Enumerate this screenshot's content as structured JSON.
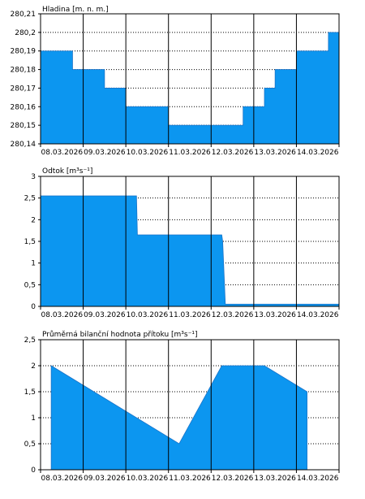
{
  "chart_data": [
    {
      "type": "area",
      "title": "Hladina [m. n. m.]",
      "x": [
        "2026-03-08T00:00",
        "2026-03-08T18:00",
        "2026-03-08T18:01",
        "2026-03-09T12:00",
        "2026-03-09T12:01",
        "2026-03-10T00:00",
        "2026-03-10T00:01",
        "2026-03-11T00:00",
        "2026-03-11T00:01",
        "2026-03-12T18:00",
        "2026-03-12T18:01",
        "2026-03-13T06:00",
        "2026-03-13T06:01",
        "2026-03-13T12:00",
        "2026-03-13T12:01",
        "2026-03-14T00:00",
        "2026-03-14T00:01",
        "2026-03-14T18:00",
        "2026-03-14T18:01",
        "2026-03-15T00:00"
      ],
      "y": [
        280.19,
        280.19,
        280.18,
        280.18,
        280.17,
        280.17,
        280.16,
        280.16,
        280.15,
        280.15,
        280.16,
        280.16,
        280.17,
        280.17,
        280.18,
        280.18,
        280.19,
        280.19,
        280.2,
        280.2
      ],
      "ylim": [
        280.14,
        280.21
      ],
      "yticks": [
        280.14,
        280.15,
        280.16,
        280.17,
        280.18,
        280.19,
        280.2,
        280.21
      ],
      "ytick_labels": [
        "280,14",
        "280,15",
        "280,16",
        "280,17",
        "280,18",
        "280,19",
        "280,2",
        "280,21"
      ],
      "xtick_labels": [
        "08.03.2026",
        "09.03.2026",
        "10.03.2026",
        "11.03.2026",
        "12.03.2026",
        "13.03.2026",
        "14.03.2026"
      ],
      "grid": true
    },
    {
      "type": "area",
      "title": "Odtok [m³s⁻¹]",
      "x": [
        "2026-03-08T00:00",
        "2026-03-10T06:00",
        "2026-03-10T06:30",
        "2026-03-12T06:00",
        "2026-03-12T06:30",
        "2026-03-12T08:00",
        "2026-03-15T00:00"
      ],
      "y": [
        2.55,
        2.55,
        1.65,
        1.65,
        1.5,
        0.05,
        0.05
      ],
      "ylim": [
        0,
        3
      ],
      "yticks": [
        0,
        0.5,
        1,
        1.5,
        2,
        2.5,
        3
      ],
      "ytick_labels": [
        "0",
        "0,5",
        "1",
        "1,5",
        "2",
        "2,5",
        "3"
      ],
      "xtick_labels": [
        "08.03.2026",
        "09.03.2026",
        "10.03.2026",
        "11.03.2026",
        "12.03.2026",
        "13.03.2026",
        "14.03.2026"
      ],
      "grid": true
    },
    {
      "type": "area",
      "title": "Průměrná bilanční hodnota přítoku [m³s⁻¹]",
      "x": [
        "2026-03-08T06:00",
        "2026-03-11T06:00",
        "2026-03-12T06:00",
        "2026-03-13T06:00",
        "2026-03-14T06:00"
      ],
      "y": [
        2.0,
        0.5,
        2.0,
        2.0,
        1.5
      ],
      "ylim": [
        0,
        2.5
      ],
      "yticks": [
        0,
        0.5,
        1,
        1.5,
        2,
        2.5
      ],
      "ytick_labels": [
        "0",
        "0,5",
        "1",
        "1,5",
        "2",
        "2,5"
      ],
      "xtick_labels": [
        "08.03.2026",
        "09.03.2026",
        "10.03.2026",
        "11.03.2026",
        "12.03.2026",
        "13.03.2026",
        "14.03.2026"
      ],
      "grid": true
    }
  ],
  "colors": {
    "fill": "#0c96f0",
    "stroke": "#1a73c8",
    "grid": "#000000"
  }
}
